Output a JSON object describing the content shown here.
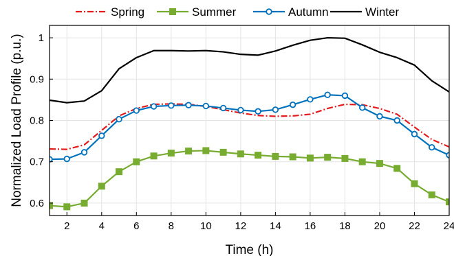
{
  "chart_data": {
    "type": "line",
    "title": "",
    "xlabel": "Time (h)",
    "ylabel": "Normalized Load Profile (p.u.)",
    "xlim": [
      1,
      24
    ],
    "ylim": [
      0.57,
      1.03
    ],
    "xticks": [
      2,
      4,
      6,
      8,
      10,
      12,
      14,
      16,
      18,
      20,
      22,
      24
    ],
    "yticks": [
      0.6,
      0.7,
      0.8,
      0.9,
      1
    ],
    "ytick_labels": [
      "0.6",
      "0.7",
      "0.8",
      "0.9",
      "1"
    ],
    "grid": true,
    "legend_position": "top",
    "x": [
      1,
      2,
      3,
      4,
      5,
      6,
      7,
      8,
      9,
      10,
      11,
      12,
      13,
      14,
      15,
      16,
      17,
      18,
      19,
      20,
      21,
      22,
      23,
      24
    ],
    "series": [
      {
        "name": "Spring",
        "color": "#e41a1c",
        "line_style": "dashdot",
        "marker": "none",
        "values": [
          0.731,
          0.73,
          0.741,
          0.776,
          0.811,
          0.829,
          0.839,
          0.84,
          0.839,
          0.834,
          0.826,
          0.818,
          0.812,
          0.81,
          0.811,
          0.815,
          0.829,
          0.839,
          0.838,
          0.829,
          0.815,
          0.784,
          0.754,
          0.736
        ]
      },
      {
        "name": "Summer",
        "color": "#77ac30",
        "line_style": "solid",
        "marker": "square",
        "values": [
          0.594,
          0.591,
          0.6,
          0.641,
          0.676,
          0.7,
          0.714,
          0.721,
          0.726,
          0.727,
          0.723,
          0.719,
          0.716,
          0.713,
          0.712,
          0.709,
          0.711,
          0.708,
          0.7,
          0.696,
          0.684,
          0.647,
          0.62,
          0.603
        ]
      },
      {
        "name": "Autumn",
        "color": "#0072bd",
        "line_style": "solid",
        "marker": "circle",
        "values": [
          0.706,
          0.707,
          0.723,
          0.763,
          0.803,
          0.824,
          0.834,
          0.836,
          0.837,
          0.835,
          0.83,
          0.825,
          0.822,
          0.826,
          0.838,
          0.851,
          0.862,
          0.86,
          0.831,
          0.81,
          0.8,
          0.767,
          0.735,
          0.716
        ]
      },
      {
        "name": "Winter",
        "color": "#000000",
        "line_style": "solid",
        "marker": "none",
        "values": [
          0.849,
          0.843,
          0.847,
          0.872,
          0.925,
          0.952,
          0.969,
          0.969,
          0.968,
          0.969,
          0.966,
          0.96,
          0.958,
          0.968,
          0.982,
          0.994,
          1.0,
          0.999,
          0.983,
          0.965,
          0.952,
          0.934,
          0.896,
          0.869
        ]
      }
    ]
  }
}
